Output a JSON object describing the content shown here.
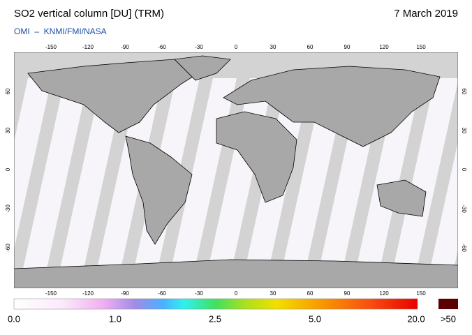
{
  "header": {
    "title": "SO2 vertical column [DU] (TRM)",
    "date": "7 March 2019",
    "source": "OMI  –  KNMI/FMI/NASA"
  },
  "map": {
    "lon_ticks": [
      -150,
      -120,
      -90,
      -60,
      -30,
      0,
      30,
      60,
      90,
      120,
      150
    ],
    "lat_ticks": [
      60,
      30,
      0,
      -30,
      -60
    ]
  },
  "colorbar": {
    "labels": [
      "0.0",
      "1.0",
      "2.5",
      "5.0",
      "20.0"
    ],
    "overflow": ">50"
  }
}
